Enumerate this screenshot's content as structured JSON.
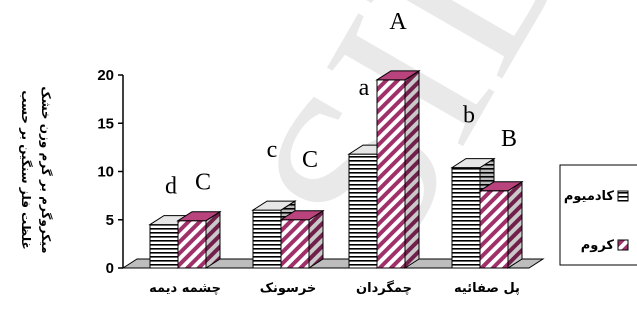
{
  "chart_data": {
    "type": "bar",
    "categories": [
      "چشمه دیمه",
      "خرسونک",
      "چمگردان",
      "پل صفائیه"
    ],
    "series": [
      {
        "name": "کادمیوم",
        "values": [
          4.5,
          6.0,
          11.8,
          10.4
        ],
        "color": "#ffffff",
        "pattern": "horizontal-lines"
      },
      {
        "name": "کروم",
        "values": [
          4.9,
          5.0,
          19.5,
          8.0
        ],
        "color": "#a0306a",
        "pattern": "diagonal-stripes"
      }
    ],
    "ylabel_line1": "غلظت فلز سنگین بر حسب",
    "ylabel_line2": "میکروگرم بر گرم وزن خشک",
    "yticks": [
      "0",
      "5",
      "10",
      "15",
      "20"
    ],
    "ylim": [
      0,
      20
    ],
    "grid": false,
    "legend_position": "right",
    "annotations": [
      {
        "text": "d",
        "category": 0,
        "series": 0
      },
      {
        "text": "C",
        "category": 0,
        "series": 1
      },
      {
        "text": "c",
        "category": 1,
        "series": 0
      },
      {
        "text": "C",
        "category": 1,
        "series": 1
      },
      {
        "text": "a",
        "category": 2,
        "series": 0
      },
      {
        "text": "A",
        "category": 2,
        "series": 1
      },
      {
        "text": "b",
        "category": 3,
        "series": 0
      },
      {
        "text": "B",
        "category": 3,
        "series": 1
      }
    ]
  },
  "watermark": "SID"
}
